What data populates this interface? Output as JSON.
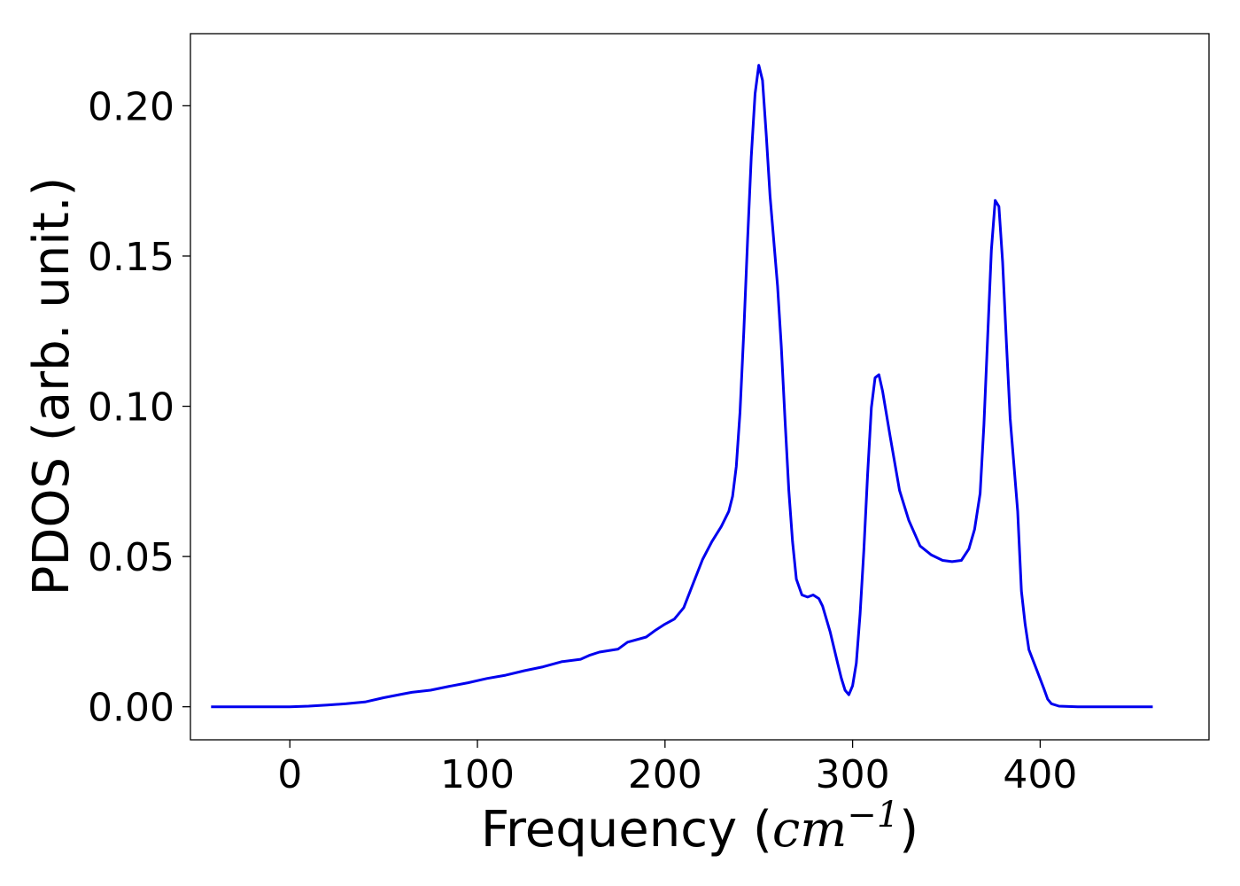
{
  "chart_data": {
    "type": "line",
    "xlabel": "Frequency (",
    "xlabel_math": "cm",
    "xlabel_sup": "−1",
    "xlabel_close": ")",
    "ylabel": "PDOS (arb. unit.)",
    "xlim": [
      -53,
      490
    ],
    "ylim": [
      -0.011,
      0.224
    ],
    "x_ticks": [
      0,
      100,
      200,
      300,
      400
    ],
    "x_tick_labels": [
      "0",
      "100",
      "200",
      "300",
      "400"
    ],
    "y_ticks": [
      0.0,
      0.05,
      0.1,
      0.15,
      0.2
    ],
    "y_tick_labels": [
      "0.00",
      "0.05",
      "0.10",
      "0.15",
      "0.20"
    ],
    "grid": false,
    "series": [
      {
        "color": "#0000ee",
        "points": [
          [
            -42,
            0.0
          ],
          [
            0,
            0.0
          ],
          [
            10,
            0.0002
          ],
          [
            20,
            0.0006
          ],
          [
            30,
            0.001
          ],
          [
            40,
            0.0016
          ],
          [
            50,
            0.003
          ],
          [
            60,
            0.0042
          ],
          [
            65,
            0.0048
          ],
          [
            75,
            0.0055
          ],
          [
            85,
            0.0068
          ],
          [
            95,
            0.008
          ],
          [
            105,
            0.0094
          ],
          [
            115,
            0.0105
          ],
          [
            125,
            0.012
          ],
          [
            135,
            0.0133
          ],
          [
            145,
            0.015
          ],
          [
            155,
            0.0158
          ],
          [
            160,
            0.0172
          ],
          [
            165,
            0.0182
          ],
          [
            175,
            0.0192
          ],
          [
            180,
            0.0215
          ],
          [
            190,
            0.0232
          ],
          [
            195,
            0.0255
          ],
          [
            200,
            0.0275
          ],
          [
            205,
            0.0292
          ],
          [
            210,
            0.033
          ],
          [
            215,
            0.041
          ],
          [
            220,
            0.049
          ],
          [
            225,
            0.055
          ],
          [
            230,
            0.06
          ],
          [
            234,
            0.065
          ],
          [
            236,
            0.07
          ],
          [
            238,
            0.08
          ],
          [
            240,
            0.098
          ],
          [
            242,
            0.125
          ],
          [
            244,
            0.155
          ],
          [
            246,
            0.183
          ],
          [
            248,
            0.204
          ],
          [
            250,
            0.2135
          ],
          [
            252,
            0.2085
          ],
          [
            254,
            0.19
          ],
          [
            256,
            0.17
          ],
          [
            260,
            0.14
          ],
          [
            262,
            0.12
          ],
          [
            264,
            0.095
          ],
          [
            266,
            0.072
          ],
          [
            268,
            0.055
          ],
          [
            270,
            0.0425
          ],
          [
            273,
            0.0372
          ],
          [
            276,
            0.0365
          ],
          [
            279,
            0.0372
          ],
          [
            282,
            0.036
          ],
          [
            284,
            0.0335
          ],
          [
            288,
            0.025
          ],
          [
            292,
            0.0145
          ],
          [
            294,
            0.0095
          ],
          [
            296,
            0.0055
          ],
          [
            298,
            0.004
          ],
          [
            300,
            0.007
          ],
          [
            302,
            0.0145
          ],
          [
            304,
            0.031
          ],
          [
            306,
            0.052
          ],
          [
            308,
            0.077
          ],
          [
            310,
            0.0995
          ],
          [
            312,
            0.1095
          ],
          [
            314,
            0.1105
          ],
          [
            316,
            0.105
          ],
          [
            320,
            0.09
          ],
          [
            325,
            0.072
          ],
          [
            330,
            0.062
          ],
          [
            336,
            0.0535
          ],
          [
            342,
            0.0505
          ],
          [
            348,
            0.0487
          ],
          [
            353,
            0.0483
          ],
          [
            358,
            0.0487
          ],
          [
            362,
            0.0525
          ],
          [
            365,
            0.059
          ],
          [
            368,
            0.071
          ],
          [
            370,
            0.094
          ],
          [
            372,
            0.123
          ],
          [
            374,
            0.152
          ],
          [
            376,
            0.1685
          ],
          [
            378,
            0.1665
          ],
          [
            380,
            0.148
          ],
          [
            382,
            0.121
          ],
          [
            384,
            0.096
          ],
          [
            388,
            0.065
          ],
          [
            390,
            0.0385
          ],
          [
            392,
            0.0275
          ],
          [
            394,
            0.019
          ],
          [
            398,
            0.0125
          ],
          [
            402,
            0.006
          ],
          [
            404,
            0.0025
          ],
          [
            406,
            0.001
          ],
          [
            410,
            0.0002
          ],
          [
            420,
            0.0
          ],
          [
            460,
            0.0
          ]
        ]
      }
    ]
  }
}
